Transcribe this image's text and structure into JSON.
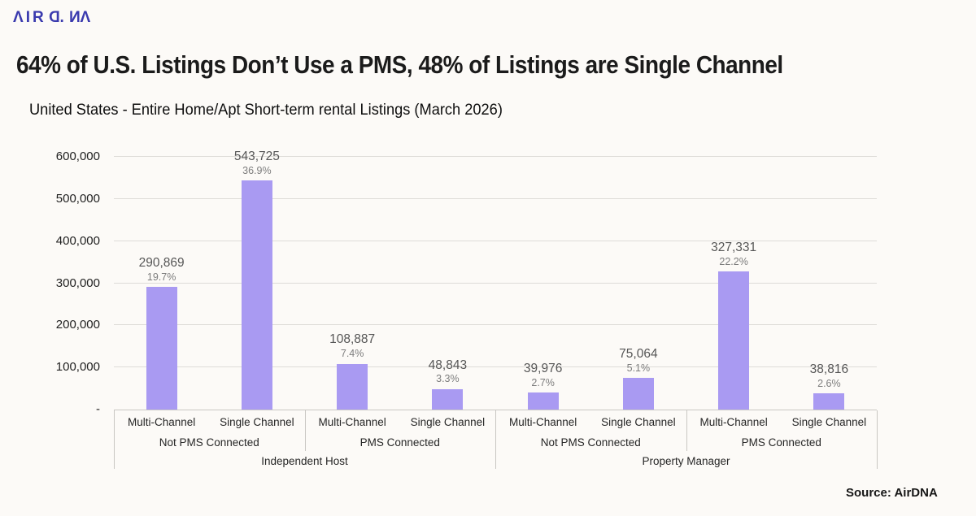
{
  "brand": {
    "logo_letters": [
      {
        "ch": "Λ",
        "mirror": false
      },
      {
        "ch": "I",
        "mirror": false
      },
      {
        "ch": "R",
        "mirror": false
      },
      {
        "ch": "D",
        "mirror": true
      },
      {
        "ch": ".",
        "mirror": false
      },
      {
        "ch": "N",
        "mirror": true
      },
      {
        "ch": "Λ",
        "mirror": false
      }
    ],
    "logo_color": "#3a3aae"
  },
  "header": {
    "title": "64% of U.S. Listings Don’t Use a PMS, 48% of Listings are Single Channel",
    "subtitle": "United States  - Entire Home/Apt Short-term rental Listings (March 2026)"
  },
  "footer": {
    "source": "Source: AirDNA"
  },
  "chart_data": {
    "type": "bar",
    "title": "64% of U.S. Listings Don’t Use a PMS, 48% of Listings are Single Channel",
    "subtitle": "United States - Entire Home/Apt Short-term rental Listings (March 2026)",
    "xlabel": "",
    "ylabel": "",
    "ylim": [
      0,
      600000
    ],
    "ytick_step": 100000,
    "ytick_labels": [
      "-",
      "100,000",
      "200,000",
      "300,000",
      "400,000",
      "500,000",
      "600,000"
    ],
    "grid": true,
    "legend": false,
    "bar_color": "#a99af2",
    "groups": [
      {
        "label": "Independent Host",
        "subgroups": [
          {
            "label": "Not PMS Connected",
            "bars": [
              {
                "category": "Multi-Channel",
                "value": 290869,
                "value_label": "290,869",
                "pct_label": "19.7%"
              },
              {
                "category": "Single Channel",
                "value": 543725,
                "value_label": "543,725",
                "pct_label": "36.9%"
              }
            ]
          },
          {
            "label": "PMS Connected",
            "bars": [
              {
                "category": "Multi-Channel",
                "value": 108887,
                "value_label": "108,887",
                "pct_label": "7.4%"
              },
              {
                "category": "Single Channel",
                "value": 48843,
                "value_label": "48,843",
                "pct_label": "3.3%"
              }
            ]
          }
        ]
      },
      {
        "label": "Property Manager",
        "subgroups": [
          {
            "label": "Not PMS Connected",
            "bars": [
              {
                "category": "Multi-Channel",
                "value": 39976,
                "value_label": "39,976",
                "pct_label": "2.7%"
              },
              {
                "category": "Single Channel",
                "value": 75064,
                "value_label": "75,064",
                "pct_label": "5.1%"
              }
            ]
          },
          {
            "label": "PMS Connected",
            "bars": [
              {
                "category": "Multi-Channel",
                "value": 327331,
                "value_label": "327,331",
                "pct_label": "22.2%"
              },
              {
                "category": "Single Channel",
                "value": 38816,
                "value_label": "38,816",
                "pct_label": "2.6%"
              }
            ]
          }
        ]
      }
    ]
  }
}
